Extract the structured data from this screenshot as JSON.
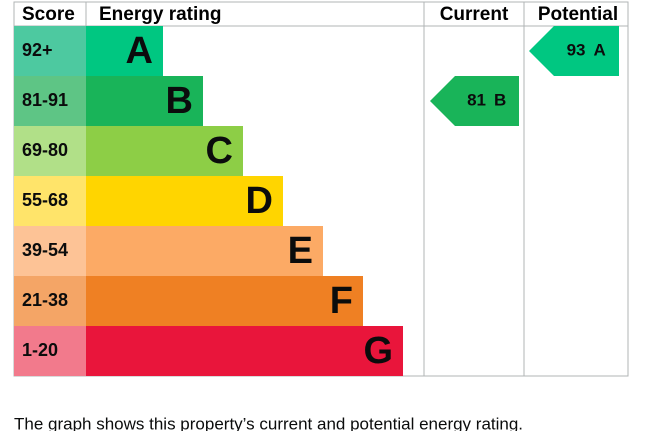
{
  "header": {
    "score": "Score",
    "rating": "Energy rating",
    "current": "Current",
    "potential": "Potential"
  },
  "bands": [
    {
      "score": "92+",
      "letter": "A",
      "color": "#00c781",
      "score_color": "#4dc9a0"
    },
    {
      "score": "81-91",
      "letter": "B",
      "color": "#19b459",
      "score_color": "#5ec585"
    },
    {
      "score": "69-80",
      "letter": "C",
      "color": "#8dce46",
      "score_color": "#b1e088"
    },
    {
      "score": "55-68",
      "letter": "D",
      "color": "#ffd500",
      "score_color": "#ffe46a"
    },
    {
      "score": "39-54",
      "letter": "E",
      "color": "#fcaa65",
      "score_color": "#fdc396"
    },
    {
      "score": "21-38",
      "letter": "F",
      "color": "#ef8023",
      "score_color": "#f4a566"
    },
    {
      "score": "1-20",
      "letter": "G",
      "color": "#e9153b",
      "score_color": "#f27a8c"
    }
  ],
  "current": {
    "value": 81,
    "letter": "B"
  },
  "potential": {
    "value": 93,
    "letter": "A"
  },
  "caption": "The graph shows this property’s current and potential energy rating."
}
